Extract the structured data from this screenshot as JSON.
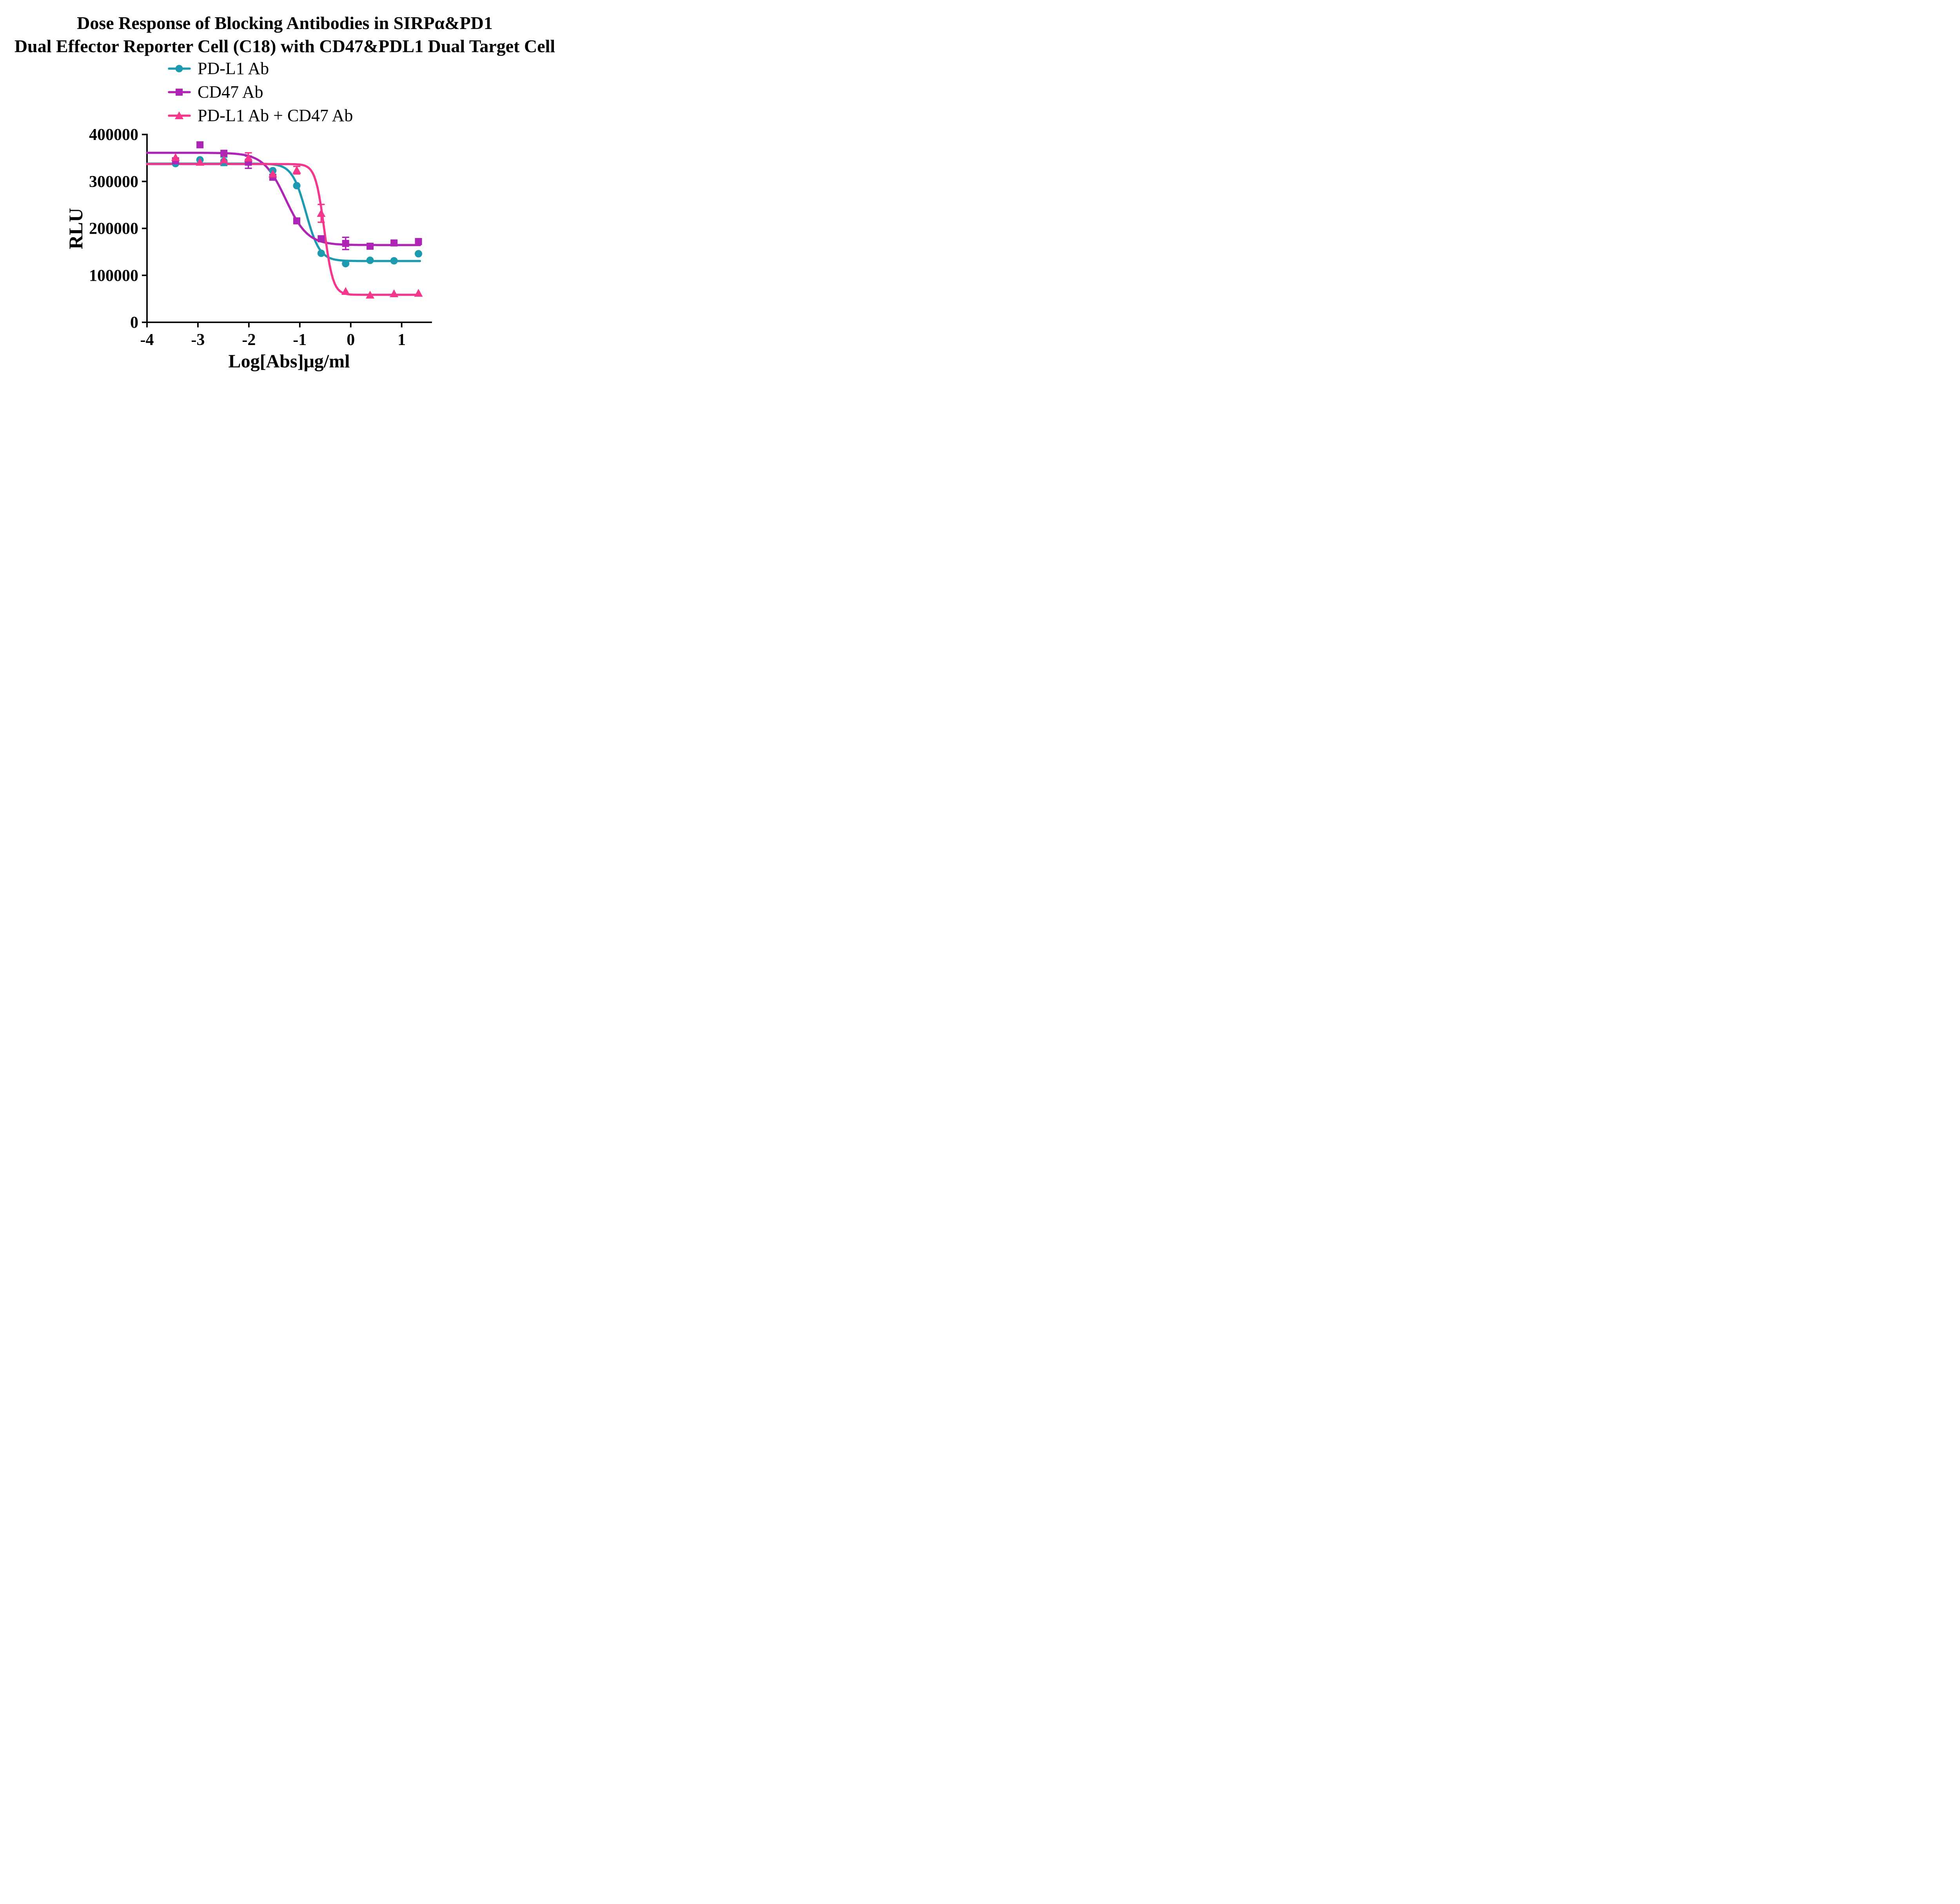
{
  "title": {
    "line1": "Dose Response of Blocking Antibodies in SIRPα&PD1",
    "line2": "Dual Effector Reporter Cell (C18) with CD47&PDL1 Dual Target Cell"
  },
  "chart_data": {
    "type": "line",
    "title": "Dose Response of Blocking Antibodies in SIRPα&PD1 Dual Effector Reporter Cell (C18) with CD47&PDL1 Dual Target Cell",
    "xlabel": "Log[Abs]μg/ml",
    "ylabel": "RLU",
    "xlim": [
      -4,
      1.58
    ],
    "ylim": [
      0,
      400000
    ],
    "x_ticks": [
      -4,
      -3,
      -2,
      -1,
      0,
      1
    ],
    "y_ticks": [
      0,
      100000,
      200000,
      300000,
      400000
    ],
    "grid": false,
    "legend_position": "top-left-under-title",
    "curve_x_range": [
      -4,
      1.36
    ],
    "x": [
      -3.44,
      -2.96,
      -2.49,
      -2.01,
      -1.53,
      -1.06,
      -0.58,
      -0.1,
      0.38,
      0.85,
      1.33
    ],
    "series": [
      {
        "name": "PD-L1 Ab",
        "color": "#1c9bb0",
        "marker": "circle",
        "values": [
          338000,
          346000,
          343000,
          341000,
          323000,
          291000,
          147000,
          125000,
          132000,
          131000,
          146000
        ],
        "errors": [
          0,
          0,
          9000,
          0,
          0,
          0,
          0,
          0,
          0,
          0,
          0
        ],
        "fit": {
          "top": 338000,
          "bottom": 130500,
          "logEC50": -0.88,
          "hill": 3.2
        }
      },
      {
        "name": "CD47 Ab",
        "color": "#ae25b6",
        "marker": "square",
        "values": [
          344000,
          378000,
          360000,
          341000,
          309000,
          216000,
          178000,
          168000,
          162000,
          169000,
          172000
        ],
        "errors": [
          0,
          0,
          0,
          13000,
          0,
          0,
          0,
          13000,
          0,
          0,
          0
        ],
        "fit": {
          "top": 361000,
          "bottom": 164500,
          "logEC50": -1.28,
          "hill": 2.0
        }
      },
      {
        "name": "PD-L1 Ab + CD47 Ab",
        "color": "#f4368c",
        "marker": "triangle",
        "values": [
          351000,
          341000,
          346000,
          350000,
          316000,
          324000,
          232000,
          66000,
          58000,
          61000,
          62000
        ],
        "errors": [
          0,
          0,
          0,
          11000,
          0,
          8000,
          19000,
          0,
          0,
          0,
          0
        ],
        "fit": {
          "top": 337000,
          "bottom": 58500,
          "logEC50": -0.52,
          "hill": 5.0
        }
      }
    ]
  }
}
